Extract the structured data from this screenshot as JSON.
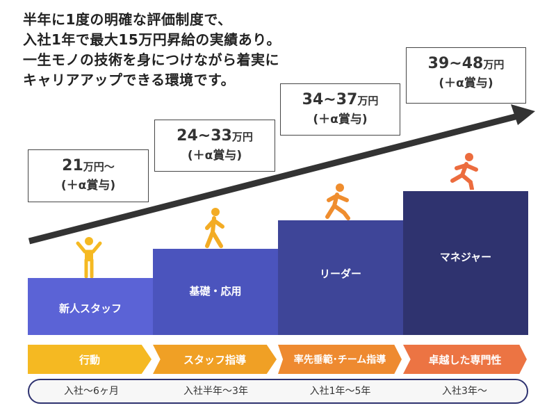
{
  "intro": [
    "半年に1度の明確な評価制度で、",
    "入社1年で最大15万円昇給の実績あり。",
    "一生モノの技術を身につけながら着実に",
    "キャリアアップできる環境です。"
  ],
  "levels": [
    {
      "salary": "21",
      "unit": "万円〜",
      "bonus": "(＋α賞与)",
      "step": "新人スタッフ",
      "role": "行動",
      "period": "入社〜6ヶ月",
      "color": "#5b63d6",
      "chev_color": "#f5b922",
      "figure": "standing-person-icon",
      "figure_color": "#f5b922"
    },
    {
      "salary": "24~33",
      "unit": "万円",
      "bonus": "(＋α賞与)",
      "step": "基礎・応用",
      "role": "スタッフ指導",
      "period": "入社半年〜3年",
      "color": "#4b54bd",
      "chev_color": "#f0a025",
      "figure": "walking-person-icon",
      "figure_color": "#f3ac25"
    },
    {
      "salary": "34~37",
      "unit": "万円",
      "bonus": "(＋α賞与)",
      "step": "リーダー",
      "role": "率先垂範･チーム指導",
      "period": "入社1年〜5年",
      "color": "#3e4598",
      "chev_color": "#ee8a30",
      "figure": "running-person-icon",
      "figure_color": "#ef8d2e"
    },
    {
      "salary": "39~48",
      "unit": "万円",
      "bonus": "(＋α賞与)",
      "step": "マネジャー",
      "role": "卓越した専門性",
      "period": "入社3年〜",
      "color": "#2f336f",
      "chev_color": "#ec7443",
      "figure": "running-person-icon",
      "figure_color": "#ec6c3e"
    }
  ]
}
